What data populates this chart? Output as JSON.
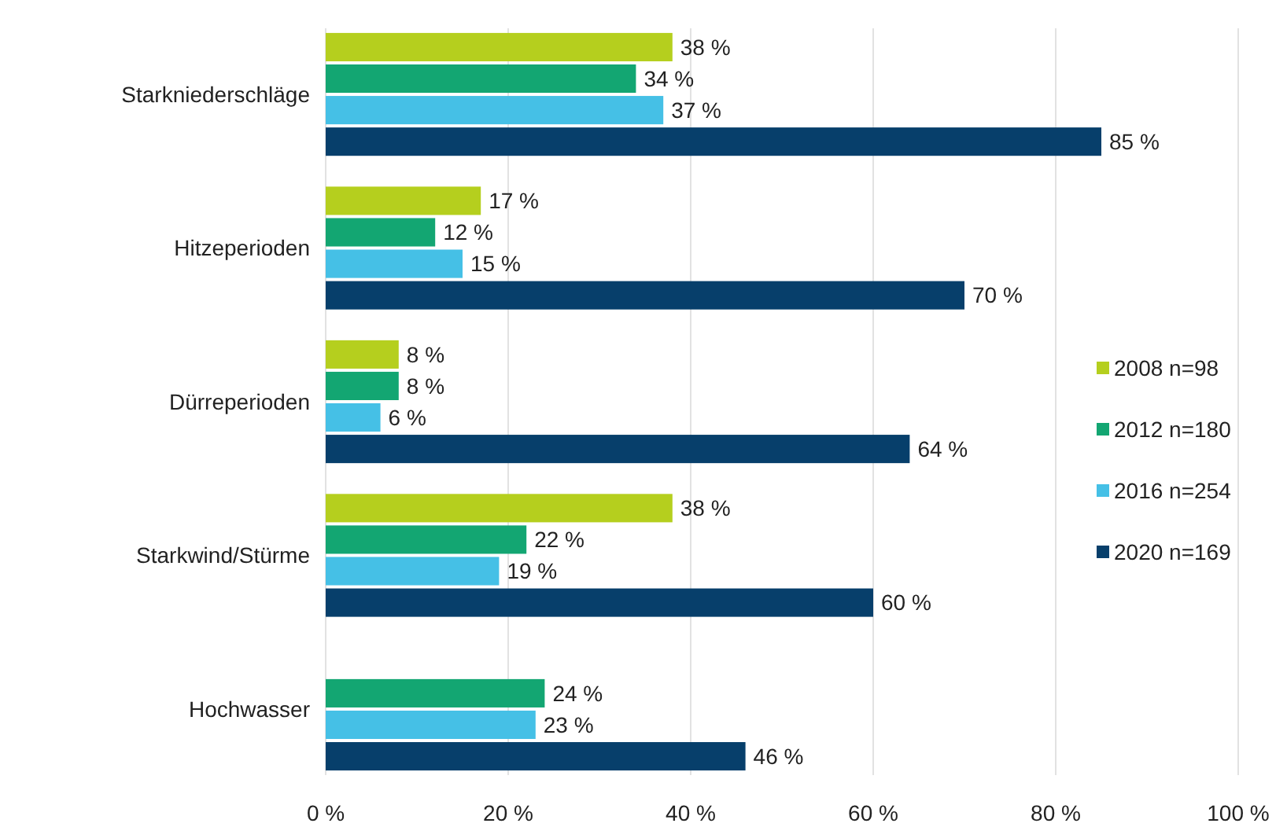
{
  "chart_data": {
    "type": "bar",
    "orientation": "horizontal",
    "categories": [
      "Starkniederschläge",
      "Hitzeperioden",
      "Dürreperioden",
      "Starkwind/Stürme",
      "Hochwasser"
    ],
    "series": [
      {
        "name": "2008 n=98",
        "color": "#b5cf1e",
        "values": [
          38,
          17,
          8,
          38,
          null
        ],
        "value_labels": [
          "38 %",
          "17 %",
          "8 %",
          "38 %",
          null
        ]
      },
      {
        "name": "2012 n=180",
        "color": "#13a672",
        "values": [
          34,
          12,
          8,
          22,
          24
        ],
        "value_labels": [
          "34 %",
          "12 %",
          "8 %",
          "22 %",
          "24 %"
        ]
      },
      {
        "name": "2016 n=254",
        "color": "#45c0e6",
        "values": [
          37,
          15,
          6,
          19,
          23
        ],
        "value_labels": [
          "37 %",
          "15 %",
          "6 %",
          "19 %",
          "23 %"
        ]
      },
      {
        "name": "2020 n=169",
        "color": "#073f6b",
        "values": [
          85,
          70,
          64,
          60,
          46
        ],
        "value_labels": [
          "85 %",
          "70 %",
          "64 %",
          "60 %",
          "46 %"
        ]
      }
    ],
    "xlim": [
      0,
      100
    ],
    "xticks": [
      {
        "value": 0,
        "label": "0 %"
      },
      {
        "value": 20,
        "label": "20 %"
      },
      {
        "value": 40,
        "label": "40 %"
      },
      {
        "value": 60,
        "label": "60 %"
      },
      {
        "value": 80,
        "label": "80 %"
      },
      {
        "value": 100,
        "label": "100 %"
      }
    ],
    "grid": "x",
    "legend": "right"
  }
}
